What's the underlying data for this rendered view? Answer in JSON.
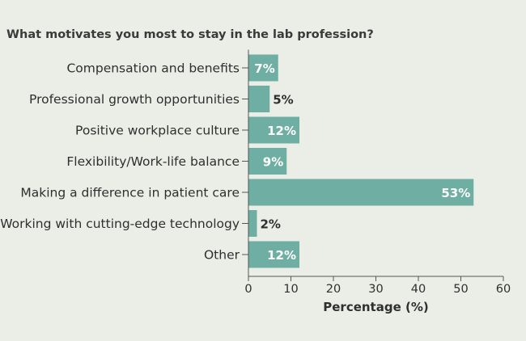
{
  "chart_data": {
    "type": "bar",
    "orientation": "horizontal",
    "title": "What motivates you most to stay in the lab profession?",
    "xlabel": "Percentage (%)",
    "ylabel": "",
    "categories": [
      "Compensation and benefits",
      "Professional growth opportunities",
      "Positive workplace culture",
      "Flexibility/Work-life balance",
      "Making a difference in patient care",
      "Working with cutting-edge technology",
      "Other"
    ],
    "values": [
      7,
      5,
      12,
      9,
      53,
      2,
      12
    ],
    "data_labels": [
      "7%",
      "5%",
      "12%",
      "9%",
      "53%",
      "2%",
      "12%"
    ],
    "xlim": [
      0,
      60
    ],
    "xticks": [
      0,
      10,
      20,
      30,
      40,
      50,
      60
    ],
    "grid": false,
    "legend": "none",
    "colors": {
      "bar": "#6fafa3",
      "background": "#ebeee6",
      "axis": "#555555",
      "label_inside": "#ffffff",
      "label_outside": "#2f2f2f"
    }
  }
}
